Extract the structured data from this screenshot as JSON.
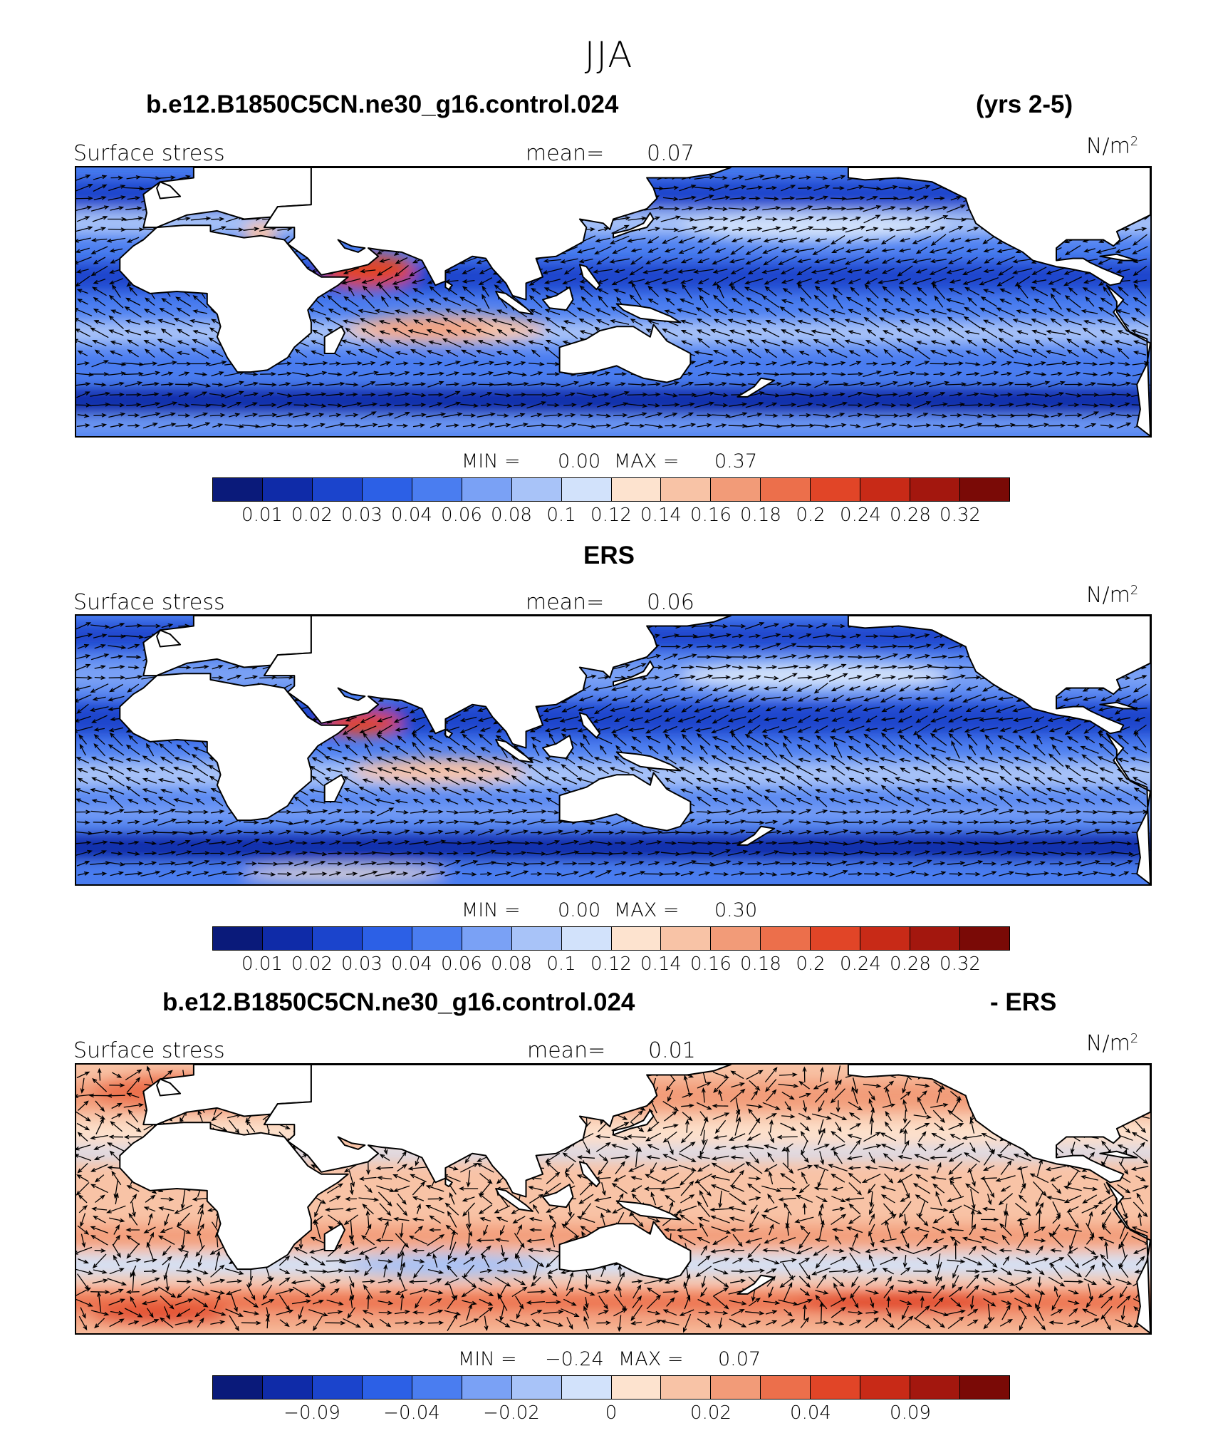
{
  "figure": {
    "title": "JJA"
  },
  "colorbars": {
    "abs_colors": [
      "#0a1a7a",
      "#0f2ba8",
      "#1b44cc",
      "#2c60e6",
      "#4a7df0",
      "#7aa1f5",
      "#a8c3f8",
      "#d2e2fb",
      "#fde3cf",
      "#f8c3a6",
      "#f29b78",
      "#ec6f4b",
      "#e14527",
      "#c82a17",
      "#a3170e",
      "#7a0a06"
    ],
    "diff_colors": [
      "#0a1a7a",
      "#0f2ba8",
      "#1b44cc",
      "#2c60e6",
      "#4a7df0",
      "#7aa1f5",
      "#a8c3f8",
      "#d2e2fb",
      "#fde3cf",
      "#f8c3a6",
      "#f29b78",
      "#ec6f4b",
      "#e14527",
      "#c82a17",
      "#a3170e",
      "#7a0a06"
    ],
    "abs_labels": [
      "0.01",
      "0.02",
      "0.03",
      "0.04",
      "0.06",
      "0.08",
      "0.1",
      "0.12",
      "0.14",
      "0.16",
      "0.18",
      "0.2",
      "0.24",
      "0.28",
      "0.32"
    ],
    "diff_labels": [
      {
        "text": "−0.09",
        "index": 2
      },
      {
        "text": "−0.04",
        "index": 4
      },
      {
        "text": "−0.02",
        "index": 6
      },
      {
        "text": "0",
        "index": 8
      },
      {
        "text": "0.02",
        "index": 10
      },
      {
        "text": "0.04",
        "index": 12
      },
      {
        "text": "0.09",
        "index": 14
      }
    ]
  },
  "panels": [
    {
      "title_left": "b.e12.B1850C5CN.ne30_g16.control.024",
      "title_right": "(yrs 2-5)",
      "variable": "Surface stress",
      "mean_label": "mean=",
      "mean_value": "0.07",
      "units": "N/m",
      "units_exp": "2",
      "min_label": "MIN =",
      "min_value": "0.00",
      "max_label": "MAX =",
      "max_value": "0.37",
      "base_color": "#4a7df0",
      "bands": [
        {
          "lat": 52,
          "width": 14,
          "color": "#1b44cc"
        },
        {
          "lat": 38,
          "width": 12,
          "color": "#a8c3f8"
        },
        {
          "lat": 12,
          "width": 14,
          "color": "#1b44cc"
        },
        {
          "lat": -15,
          "width": 12,
          "color": "#a8c3f8"
        },
        {
          "lat": -32,
          "width": 8,
          "color": "#4a7df0"
        },
        {
          "lat": -48,
          "width": 12,
          "color": "#0f2ba8"
        },
        {
          "lat": -60,
          "width": 6,
          "color": "#7aa1f5"
        }
      ],
      "hotspots": [
        {
          "lon": 57,
          "lat": 15,
          "rx": 14,
          "ry": 8,
          "color": "#e14527"
        },
        {
          "lon": 80,
          "lat": -13,
          "rx": 30,
          "ry": 7,
          "color": "#f8c3a6"
        },
        {
          "lon": 75,
          "lat": -13,
          "rx": 18,
          "ry": 4,
          "color": "#f29b78"
        },
        {
          "lon": 190,
          "lat": 36,
          "rx": 40,
          "ry": 7,
          "color": "#d2e2fb"
        },
        {
          "lon": 25,
          "lat": 33,
          "rx": 5,
          "ry": 6,
          "color": "#f8c3a6"
        }
      ]
    },
    {
      "title_left": "ERS",
      "title_right": "",
      "variable": "Surface stress",
      "mean_label": "mean=",
      "mean_value": "0.06",
      "units": "N/m",
      "units_exp": "2",
      "min_label": "MIN =",
      "min_value": "0.00",
      "max_label": "MAX =",
      "max_value": "0.30",
      "base_color": "#4a7df0",
      "bands": [
        {
          "lat": 55,
          "width": 12,
          "color": "#1b44cc"
        },
        {
          "lat": 36,
          "width": 14,
          "color": "#7aa1f5"
        },
        {
          "lat": 15,
          "width": 16,
          "color": "#1b44cc"
        },
        {
          "lat": -12,
          "width": 14,
          "color": "#a8c3f8"
        },
        {
          "lat": -30,
          "width": 8,
          "color": "#7aa1f5"
        },
        {
          "lat": -47,
          "width": 12,
          "color": "#0f2ba8"
        },
        {
          "lat": -60,
          "width": 6,
          "color": "#4a7df0"
        }
      ],
      "hotspots": [
        {
          "lon": 55,
          "lat": 13,
          "rx": 12,
          "ry": 6,
          "color": "#e14527"
        },
        {
          "lon": 78,
          "lat": -10,
          "rx": 26,
          "ry": 6,
          "color": "#f8c3a6"
        },
        {
          "lon": 190,
          "lat": 36,
          "rx": 40,
          "ry": 7,
          "color": "#d2e2fb"
        },
        {
          "lon": 50,
          "lat": -60,
          "rx": 30,
          "ry": 3,
          "color": "#fde3cf"
        }
      ]
    },
    {
      "title_left": "b.e12.B1850C5CN.ne30_g16.control.024",
      "title_right": "- ERS",
      "variable": "Surface stress",
      "mean_label": "mean=",
      "mean_value": "0.01",
      "units": "N/m",
      "units_exp": "2",
      "min_label": "MIN =",
      "min_value": "−0.24",
      "max_label": "MAX =",
      "max_value": "0.07",
      "base_color": "#f8c3a6",
      "bands": [
        {
          "lat": 50,
          "width": 14,
          "color": "#f29b78"
        },
        {
          "lat": 32,
          "width": 10,
          "color": "#fde3cf"
        },
        {
          "lat": 22,
          "width": 6,
          "color": "#d2e2fb"
        },
        {
          "lat": 5,
          "width": 12,
          "color": "#f8c3a6"
        },
        {
          "lat": -18,
          "width": 10,
          "color": "#f29b78"
        },
        {
          "lat": -32,
          "width": 10,
          "color": "#d2e2fb"
        },
        {
          "lat": -50,
          "width": 10,
          "color": "#ec6f4b"
        },
        {
          "lat": -60,
          "width": 5,
          "color": "#f29b78"
        }
      ],
      "hotspots": [
        {
          "lon": 0,
          "lat": 52,
          "rx": 25,
          "ry": 8,
          "color": "#ec6f4b"
        },
        {
          "lon": -5,
          "lat": -56,
          "rx": 20,
          "ry": 4,
          "color": "#e14527"
        },
        {
          "lon": 215,
          "lat": -50,
          "rx": 30,
          "ry": 5,
          "color": "#e14527"
        },
        {
          "lon": 80,
          "lat": -32,
          "rx": 30,
          "ry": 6,
          "color": "#a8c3f8"
        }
      ]
    }
  ]
}
